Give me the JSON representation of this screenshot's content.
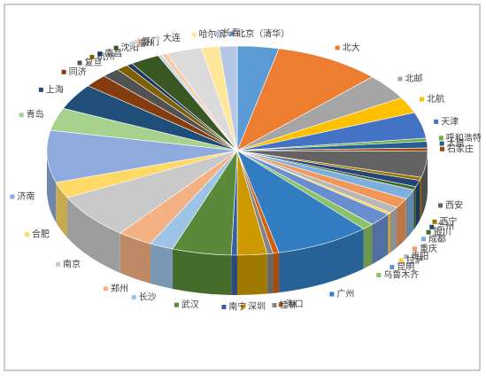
{
  "chart_data": {
    "type": "pie3d",
    "categories": [
      "北京（清华）",
      "北大",
      "北邮",
      "北航",
      "天津",
      "呼和浩特",
      "太原",
      "石家庄",
      "西安",
      "西宁",
      "兰州",
      "银川",
      "成都",
      "重庆",
      "贵阳",
      "拉萨",
      "昆明",
      "乌鲁木齐",
      "广州",
      "海口",
      "桂林",
      "深圳",
      "南宁",
      "武汉",
      "长沙",
      "郑州",
      "南京",
      "合肥",
      "济南",
      "青岛",
      "上海",
      "同济",
      "复旦",
      "杭州",
      "南昌",
      "沈阳",
      "福州",
      "厦门",
      "大连",
      "哈尔滨",
      "长春"
    ],
    "values": [
      3.5,
      9,
      4,
      2.5,
      4,
      0.5,
      1,
      0.5,
      4,
      0.5,
      1,
      0.5,
      1.5,
      1.5,
      1,
      0.3,
      2,
      1,
      8,
      0.5,
      0.5,
      2.5,
      0.5,
      5,
      2,
      3,
      7,
      2.5,
      8,
      3.5,
      4,
      2,
      1.5,
      1,
      0.5,
      2.5,
      0.3,
      0.5,
      3,
      1.5,
      1.5
    ],
    "colors": [
      "#5b9bd5",
      "#ed7d31",
      "#a5a5a5",
      "#ffc000",
      "#4472c4",
      "#70ad47",
      "#255e91",
      "#9e480e",
      "#636363",
      "#997300",
      "#264478",
      "#43682b",
      "#7cafdd",
      "#f1975a",
      "#b7b7b7",
      "#ffcd33",
      "#698ed0",
      "#8cc168",
      "#327dc2",
      "#d26012",
      "#848484",
      "#cc9a00",
      "#3a5fa0",
      "#5a8a39",
      "#9dc3e6",
      "#f4b183",
      "#c9c9c9",
      "#ffd966",
      "#8faadc",
      "#a9d18e",
      "#1f4e79",
      "#843c0c",
      "#525252",
      "#7f6000",
      "#203864",
      "#385723",
      "#bdd7ee",
      "#f8cbad",
      "#dbdbdb",
      "#ffe699",
      "#b4c7e7"
    ]
  }
}
